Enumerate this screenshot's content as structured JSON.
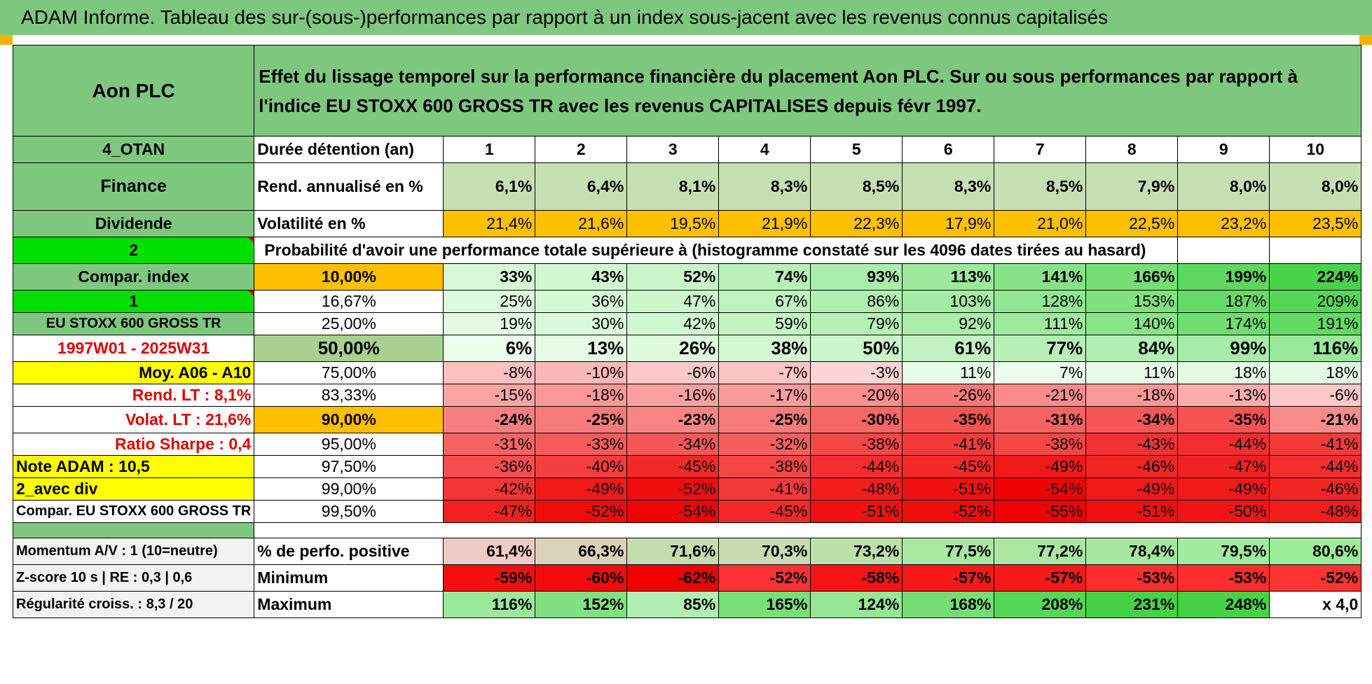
{
  "title": "ADAM Informe. Tableau des sur-(sous-)performances par rapport à un index sous-jacent avec les revenus connus capitalisés",
  "header": {
    "company": "Aon PLC",
    "description": "Effet du lissage temporel sur la performance financière du placement Aon PLC. Sur ou sous performances par rapport à l'indice EU STOXX 600 GROSS TR avec les revenus CAPITALISES depuis févr 1997."
  },
  "left_labels": {
    "code": "4_OTAN",
    "sector": "Finance",
    "dividend": "Dividende",
    "n2": "2",
    "compar_index": "Compar. index",
    "n1": "1",
    "index_name": "EU STOXX 600 GROSS TR",
    "period": "1997W01 - 2025W31",
    "moy": "Moy. A06 - A10",
    "rend_lt": "Rend. LT :    8,1%",
    "volat_lt": "Volat. LT :    21,6%",
    "sharpe": "Ratio Sharpe :     0,4",
    "note": "Note ADAM : 10,5",
    "avec_div": "2_avec div",
    "compar_eu": "Compar. EU STOXX 600 GROSS TR",
    "momentum": "Momentum A/V : 1 (10=neutre)",
    "zscore": "Z-score 10 s | RE : 0,3 | 0,6",
    "regularite": "Régularité croiss. : 8,3 / 20"
  },
  "rows": {
    "duree": {
      "label": "Durée détention (an)",
      "values": [
        "1",
        "2",
        "3",
        "4",
        "5",
        "6",
        "7",
        "8",
        "9",
        "10"
      ]
    },
    "rend": {
      "label": "Rend. annualisé en %",
      "values": [
        "6,1%",
        "6,4%",
        "8,1%",
        "8,3%",
        "8,5%",
        "8,3%",
        "8,5%",
        "7,9%",
        "8,0%",
        "8,0%"
      ]
    },
    "vol": {
      "label": "Volatilité en %",
      "values": [
        "21,4%",
        "21,6%",
        "19,5%",
        "21,9%",
        "22,3%",
        "17,9%",
        "21,0%",
        "22,5%",
        "23,2%",
        "23,5%"
      ]
    },
    "proba_title": "Probabilité d'avoir une performance totale supérieure à (histogramme constaté sur les 4096 dates tirées au hasard)",
    "percentiles": [
      {
        "p": "10,00%",
        "values": [
          "33%",
          "43%",
          "52%",
          "74%",
          "93%",
          "113%",
          "141%",
          "166%",
          "199%",
          "224%"
        ]
      },
      {
        "p": "16,67%",
        "values": [
          "25%",
          "36%",
          "47%",
          "67%",
          "86%",
          "103%",
          "128%",
          "153%",
          "187%",
          "209%"
        ]
      },
      {
        "p": "25,00%",
        "values": [
          "19%",
          "30%",
          "42%",
          "59%",
          "79%",
          "92%",
          "111%",
          "140%",
          "174%",
          "191%"
        ]
      },
      {
        "p": "50,00%",
        "values": [
          "6%",
          "13%",
          "26%",
          "38%",
          "50%",
          "61%",
          "77%",
          "84%",
          "99%",
          "116%"
        ]
      },
      {
        "p": "75,00%",
        "values": [
          "-8%",
          "-10%",
          "-6%",
          "-7%",
          "-3%",
          "11%",
          "7%",
          "11%",
          "18%",
          "18%"
        ]
      },
      {
        "p": "83,33%",
        "values": [
          "-15%",
          "-18%",
          "-16%",
          "-17%",
          "-20%",
          "-26%",
          "-21%",
          "-18%",
          "-13%",
          "-6%"
        ]
      },
      {
        "p": "90,00%",
        "values": [
          "-24%",
          "-25%",
          "-23%",
          "-25%",
          "-30%",
          "-35%",
          "-31%",
          "-34%",
          "-35%",
          "-21%"
        ]
      },
      {
        "p": "95,00%",
        "values": [
          "-31%",
          "-33%",
          "-34%",
          "-32%",
          "-38%",
          "-41%",
          "-38%",
          "-43%",
          "-44%",
          "-41%"
        ]
      },
      {
        "p": "97,50%",
        "values": [
          "-36%",
          "-40%",
          "-45%",
          "-38%",
          "-44%",
          "-45%",
          "-49%",
          "-46%",
          "-47%",
          "-44%"
        ]
      },
      {
        "p": "99,00%",
        "values": [
          "-42%",
          "-49%",
          "-52%",
          "-41%",
          "-48%",
          "-51%",
          "-54%",
          "-49%",
          "-49%",
          "-46%"
        ]
      },
      {
        "p": "99,50%",
        "values": [
          "-47%",
          "-52%",
          "-54%",
          "-45%",
          "-51%",
          "-52%",
          "-55%",
          "-51%",
          "-50%",
          "-48%"
        ]
      }
    ],
    "positive": {
      "label": "% de perfo. positive",
      "values": [
        "61,4%",
        "66,3%",
        "71,6%",
        "70,3%",
        "73,2%",
        "77,5%",
        "77,2%",
        "78,4%",
        "79,5%",
        "80,6%"
      ]
    },
    "minimum": {
      "label": "Minimum",
      "values": [
        "-59%",
        "-60%",
        "-62%",
        "-52%",
        "-58%",
        "-57%",
        "-57%",
        "-53%",
        "-53%",
        "-52%"
      ]
    },
    "maximum": {
      "label": "Maximum",
      "values": [
        "116%",
        "152%",
        "85%",
        "165%",
        "124%",
        "168%",
        "208%",
        "231%",
        "248%",
        "x 4,0"
      ]
    }
  },
  "colors": {
    "header_green": "#7ec77f",
    "orange": "#ffc000",
    "yellow": "#ffff00",
    "bright_green": "#00e000",
    "red_text": "#e00000"
  }
}
